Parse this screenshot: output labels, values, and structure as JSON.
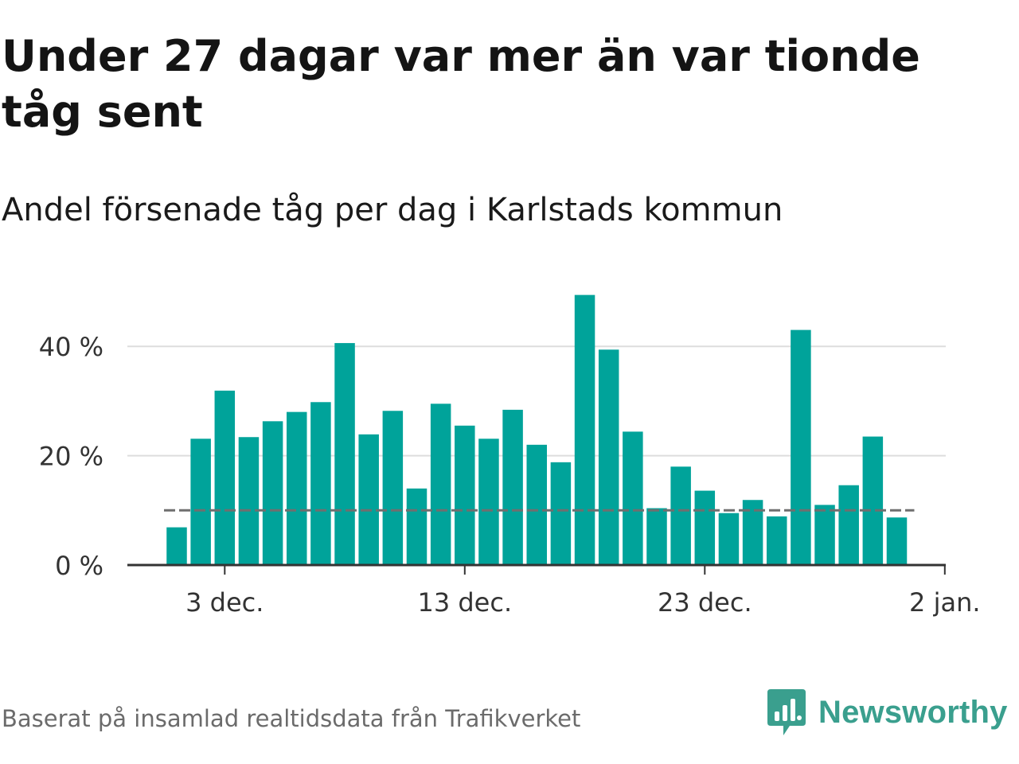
{
  "title": "Under 27 dagar var mer än var tionde tåg sent",
  "subtitle": "Andel försenade tåg per dag i Karlstads kommun",
  "footer": "Baserat på insamlad realtidsdata från Trafikverket",
  "brand": {
    "name": "Newsworthy",
    "icon": "newsworthy-bar-chart-icon"
  },
  "colors": {
    "bars": "#00a39a",
    "reference_line": "#6f6f6f",
    "grid": "#dddddd",
    "axis": "#333333",
    "brand": "#3a9f8e"
  },
  "chart_data": {
    "type": "bar",
    "x": [
      "2019-12-01",
      "2019-12-02",
      "2019-12-03",
      "2019-12-04",
      "2019-12-05",
      "2019-12-06",
      "2019-12-07",
      "2019-12-08",
      "2019-12-09",
      "2019-12-10",
      "2019-12-11",
      "2019-12-12",
      "2019-12-13",
      "2019-12-14",
      "2019-12-15",
      "2019-12-16",
      "2019-12-17",
      "2019-12-18",
      "2019-12-19",
      "2019-12-20",
      "2019-12-21",
      "2019-12-22",
      "2019-12-23",
      "2019-12-24",
      "2019-12-25",
      "2019-12-26",
      "2019-12-27",
      "2019-12-28",
      "2019-12-29",
      "2019-12-30",
      "2019-12-31"
    ],
    "values": [
      6.9,
      23.1,
      31.9,
      23.4,
      26.3,
      28.0,
      29.8,
      40.6,
      23.9,
      28.2,
      14.0,
      29.5,
      25.5,
      23.1,
      28.4,
      22.0,
      18.8,
      49.4,
      39.4,
      24.4,
      10.4,
      18.0,
      13.6,
      9.5,
      11.9,
      8.9,
      43.0,
      11.0,
      14.6,
      23.5,
      8.7
    ],
    "reference_line": 10,
    "ylim": [
      0,
      50
    ],
    "y_ticks": [
      0,
      20,
      40
    ],
    "y_tick_labels": [
      "0 %",
      "20 %",
      "40 %"
    ],
    "x_tick_dates": [
      "2019-12-03",
      "2019-12-13",
      "2019-12-23",
      "2020-01-02"
    ],
    "x_tick_labels": [
      "3 dec.",
      "13 dec.",
      "23 dec.",
      "2 jan."
    ],
    "grid": true,
    "legend": "none"
  }
}
